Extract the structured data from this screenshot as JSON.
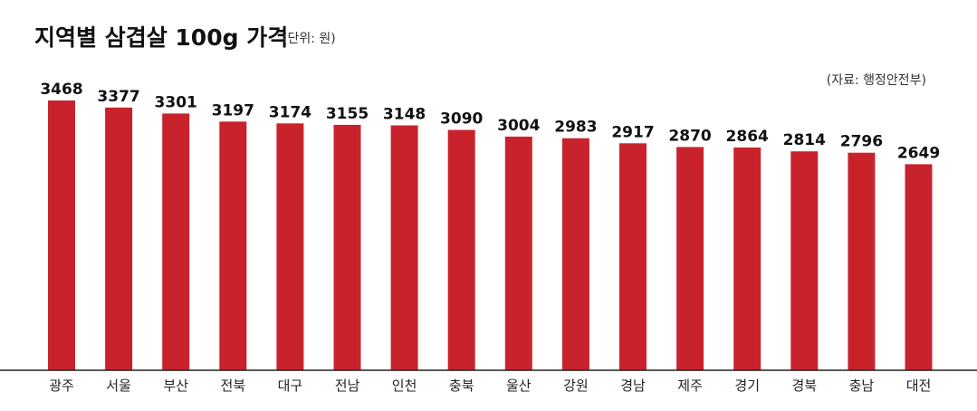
{
  "chart_data": {
    "type": "bar",
    "title": "지역별 삼겹살 100g 가격",
    "unit_note": "(단위: 원)",
    "source": "(자료: 행정안전부)",
    "categories": [
      "광주",
      "서울",
      "부산",
      "전북",
      "대구",
      "전남",
      "인천",
      "충북",
      "울산",
      "강원",
      "경남",
      "제주",
      "경기",
      "경북",
      "충남",
      "대전"
    ],
    "values": [
      3468,
      3377,
      3301,
      3197,
      3174,
      3155,
      3148,
      3090,
      3004,
      2983,
      2917,
      2870,
      2864,
      2814,
      2796,
      2649
    ],
    "ylim": [
      0,
      3500
    ],
    "grid": false,
    "bar_color": "#c8232c",
    "axis_color": "#222222"
  }
}
